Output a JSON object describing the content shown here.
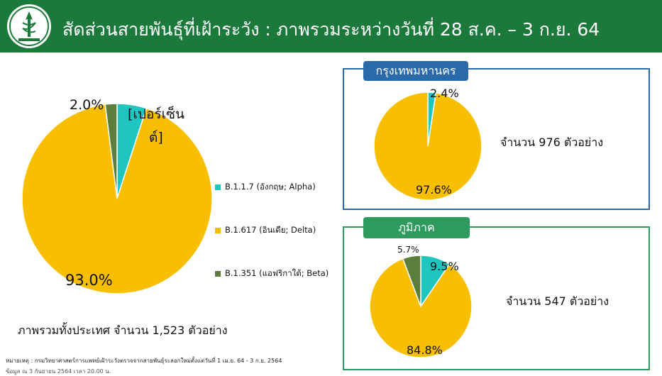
{
  "header": {
    "title": "สัดส่วนสายพันธุ์ที่เฝ้าระวัง : ภาพรวมระหว่างวันที่ 28 ส.ค. – 3 ก.ย. 64",
    "logo_caption": "กรมวิทยาศาสตร์การแพทย์",
    "bg_color": "#1b7a3b"
  },
  "colors": {
    "alpha": "#1fc6c0",
    "delta": "#f7bf00",
    "beta": "#5b7f3a"
  },
  "legend": {
    "items": [
      {
        "label": "B.1.1.7 (อังกฤษ; Alpha)",
        "color": "#1fc6c0"
      },
      {
        "label": "B.1.617 (อินเดีย; Delta)",
        "color": "#f7bf00"
      },
      {
        "label": "B.1.351 (แอฟริกาใต้; Beta)",
        "color": "#5b7f3a"
      }
    ]
  },
  "main_unit": {
    "line1": "[เปอร์เซ็น",
    "line2": "ต์]"
  },
  "main_total": "ภาพรวมทั้งประเทศ จำนวน 1,523 ตัวอย่าง",
  "bangkok": {
    "tab": "กรุงเทพมหานคร",
    "count": "จำนวน 976 ตัวอย่าง"
  },
  "regional": {
    "tab": "ภูมิภาค",
    "count": "จำนวน 547 ตัวอย่าง"
  },
  "footnote": {
    "line1": "หมายเหตุ :  กรมวิทยาศาสตร์การแพทย์เฝ้าระวังตรวจจากสายพันธุ์ระลอกใหม่ตั้งแต่วันที่ 1 เม.ย. 64 -  3 ก.ย. 2564",
    "line2": "ข้อมูล ณ 3 กันยายน 2564 เวลา 20.00 น."
  },
  "chart_data": [
    {
      "type": "pie",
      "categories": [
        "B.1.1.7 (อังกฤษ; Alpha)",
        "B.1.617 (อินเดีย; Delta)",
        "B.1.351 (แอฟริกาใต้; Beta)"
      ],
      "values": [
        5.0,
        93.0,
        2.0
      ],
      "labels": [
        "",
        "93.0%",
        "2.0%"
      ],
      "colors": [
        "#1fc6c0",
        "#f7bf00",
        "#5b7f3a"
      ]
    },
    {
      "type": "pie",
      "title": "กรุงเทพมหานคร",
      "values": [
        2.4,
        97.6
      ],
      "labels": [
        "2.4%",
        "97.6%"
      ],
      "colors": [
        "#1fc6c0",
        "#f7bf00"
      ]
    },
    {
      "type": "pie",
      "title": "ภูมิภาค",
      "values": [
        9.5,
        84.8,
        5.7
      ],
      "labels": [
        "9.5%",
        "84.8%",
        "5.7%"
      ],
      "colors": [
        "#1fc6c0",
        "#f7bf00",
        "#5b7f3a"
      ]
    }
  ]
}
